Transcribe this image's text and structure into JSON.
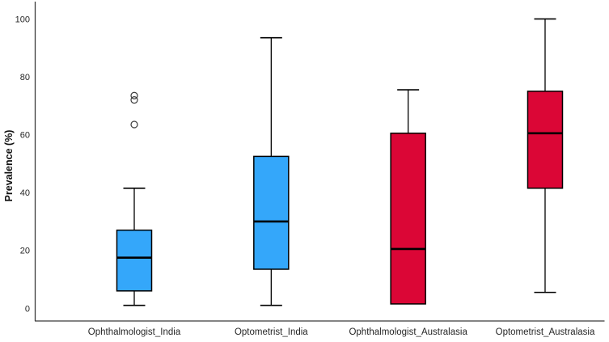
{
  "chart_data": {
    "type": "boxplot",
    "title": "",
    "xlabel": "",
    "ylabel": "Prevalence (%)",
    "ylim": [
      0,
      105
    ],
    "yticks": [
      0,
      20,
      40,
      60,
      80,
      100
    ],
    "grid": false,
    "legend": "none",
    "categories": [
      "Ophthalmologist_India",
      "Optometrist_India",
      "Ophthalmologist_Australasia",
      "Optometrist_Australasia"
    ],
    "series": [
      {
        "label": "Ophthalmologist_India",
        "group": "India",
        "color": "#34A7FA",
        "whisker_low": 1,
        "q1": 6,
        "median": 17.5,
        "q3": 27,
        "whisker_high": 41.5,
        "outliers": [
          63.5,
          72,
          73.5
        ]
      },
      {
        "label": "Optometrist_India",
        "group": "India",
        "color": "#34A7FA",
        "whisker_low": 1,
        "q1": 13.5,
        "median": 30,
        "q3": 52.5,
        "whisker_high": 93.5,
        "outliers": []
      },
      {
        "label": "Ophthalmologist_Australasia",
        "group": "Australasia",
        "color": "#DB0636",
        "whisker_low": null,
        "q1": 1.5,
        "median": 20.5,
        "q3": 60.5,
        "whisker_high": 75.5,
        "outliers": []
      },
      {
        "label": "Optometrist_Australasia",
        "group": "Australasia",
        "color": "#DB0636",
        "whisker_low": 5.5,
        "q1": 41.5,
        "median": 60.5,
        "q3": 75,
        "whisker_high": 100,
        "outliers": []
      }
    ],
    "colors": {
      "india_blue": "#34A7FA",
      "australasia_red": "#DB0636",
      "axis": "#3a3a3a",
      "box_border": "#000000",
      "median": "#000000",
      "outlier_stroke": "#3a3a3a",
      "text": "#262626"
    }
  }
}
